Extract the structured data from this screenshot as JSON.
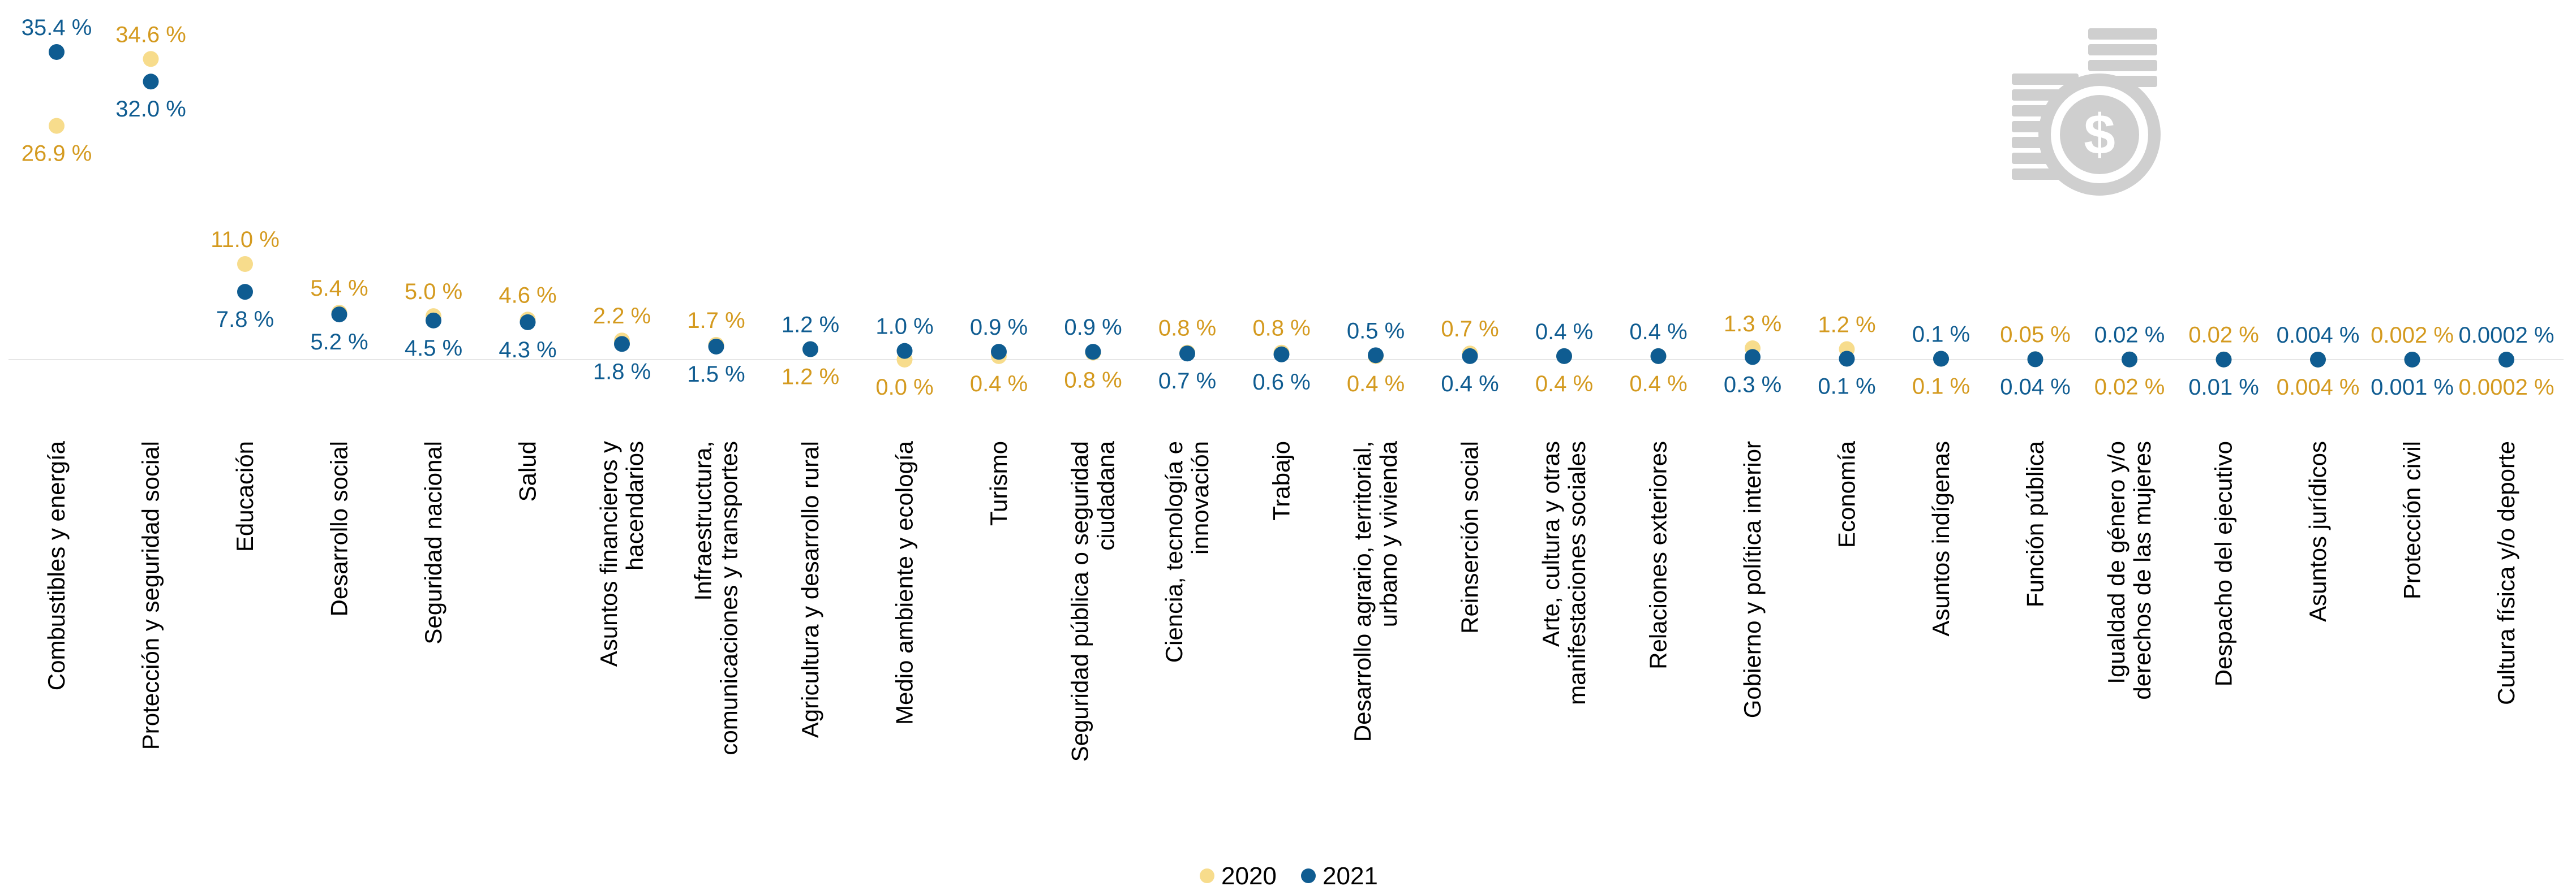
{
  "chart_data": {
    "type": "scatter",
    "title": "",
    "xlabel": "",
    "ylabel": "",
    "ylim": [
      0,
      36
    ],
    "grid": false,
    "legend_position": "bottom-center",
    "categories": [
      "Combustibles y energía",
      "Protección y seguridad social",
      "Educación",
      "Desarrollo social",
      "Seguridad nacional",
      "Salud",
      "Asuntos financieros y hacendarios",
      "Infraestructura, comunicaciones y transportes",
      "Agricultura y desarrollo rural",
      "Medio ambiente y ecología",
      "Turismo",
      "Seguridad pública o seguridad ciudadana",
      "Ciencia, tecnología e innovación",
      "Trabajo",
      "Desarrollo agrario, territorial, urbano y vivienda",
      "Reinserción social",
      "Arte, cultura y otras manifestaciones sociales",
      "Relaciones exteriores",
      "Gobierno y política interior",
      "Economía",
      "Asuntos indígenas",
      "Función pública",
      "Igualdad de género y/o derechos de las mujeres",
      "Despacho del ejecutivo",
      "Asuntos jurídicos",
      "Protección civil",
      "Cultura física y/o deporte"
    ],
    "category_lines": [
      [
        "Combustibles y energía"
      ],
      [
        "Protección y seguridad social"
      ],
      [
        "Educación"
      ],
      [
        "Desarrollo social"
      ],
      [
        "Seguridad nacional"
      ],
      [
        "Salud"
      ],
      [
        "Asuntos financieros y",
        "hacendarios"
      ],
      [
        "Infraestructura,",
        "comunicaciones y transportes"
      ],
      [
        "Agricultura y desarrollo rural"
      ],
      [
        "Medio ambiente y ecología"
      ],
      [
        "Turismo"
      ],
      [
        "Seguridad pública o seguridad",
        "ciudadana"
      ],
      [
        "Ciencia, tecnología e",
        "innovación"
      ],
      [
        "Trabajo"
      ],
      [
        "Desarrollo agrario, territorial,",
        "urbano y vivienda"
      ],
      [
        "Reinserción social"
      ],
      [
        "Arte, cultura y otras",
        "manifestaciones sociales"
      ],
      [
        "Relaciones exteriores"
      ],
      [
        "Gobierno y política interior"
      ],
      [
        "Economía"
      ],
      [
        "Asuntos indígenas"
      ],
      [
        "Función pública"
      ],
      [
        "Igualdad de género y/o",
        "derechos de las mujeres"
      ],
      [
        "Despacho del ejecutivo"
      ],
      [
        "Asuntos jurídicos"
      ],
      [
        "Protección civil"
      ],
      [
        "Cultura física y/o deporte"
      ]
    ],
    "series": [
      {
        "name": "2020",
        "color": "#f7dc8c",
        "label_color": "#d49a1f",
        "values": [
          26.9,
          34.6,
          11.0,
          5.4,
          5.0,
          4.6,
          2.2,
          1.7,
          1.2,
          0.0,
          0.4,
          0.8,
          0.8,
          0.8,
          0.4,
          0.7,
          0.4,
          0.4,
          1.3,
          1.2,
          0.1,
          0.05,
          0.02,
          0.02,
          0.004,
          0.002,
          0.0002
        ],
        "labels": [
          "26.9 %",
          "34.6 %",
          "11.0 %",
          "5.4 %",
          "5.0 %",
          "4.6 %",
          "2.2 %",
          "1.7 %",
          "1.2 %",
          "0.0 %",
          "0.4 %",
          "0.8 %",
          "0.8 %",
          "0.8 %",
          "0.4 %",
          "0.7 %",
          "0.4 %",
          "0.4 %",
          "1.3 %",
          "1.2 %",
          "0.1 %",
          "0.05 %",
          "0.02 %",
          "0.02 %",
          "0.004 %",
          "0.002 %",
          "0.0002 %"
        ]
      },
      {
        "name": "2021",
        "color": "#0f5c91",
        "label_color": "#0f5c91",
        "values": [
          35.4,
          32.0,
          7.8,
          5.2,
          4.5,
          4.3,
          1.8,
          1.5,
          1.2,
          1.0,
          0.9,
          0.9,
          0.7,
          0.6,
          0.5,
          0.4,
          0.4,
          0.4,
          0.3,
          0.1,
          0.1,
          0.04,
          0.02,
          0.01,
          0.004,
          0.001,
          0.0002
        ],
        "labels": [
          "35.4 %",
          "32.0 %",
          "7.8 %",
          "5.2 %",
          "4.5 %",
          "4.3 %",
          "1.8 %",
          "1.5 %",
          "1.2 %",
          "1.0 %",
          "0.9 %",
          "0.9 %",
          "0.7 %",
          "0.6 %",
          "0.5 %",
          "0.4 %",
          "0.4 %",
          "0.4 %",
          "0.3 %",
          "0.1 %",
          "0.1 %",
          "0.04 %",
          "0.02 %",
          "0.01 %",
          "0.004 %",
          "0.001 %",
          "0.0002 %"
        ]
      }
    ],
    "decoration_icon": "coins-dollar-icon"
  }
}
